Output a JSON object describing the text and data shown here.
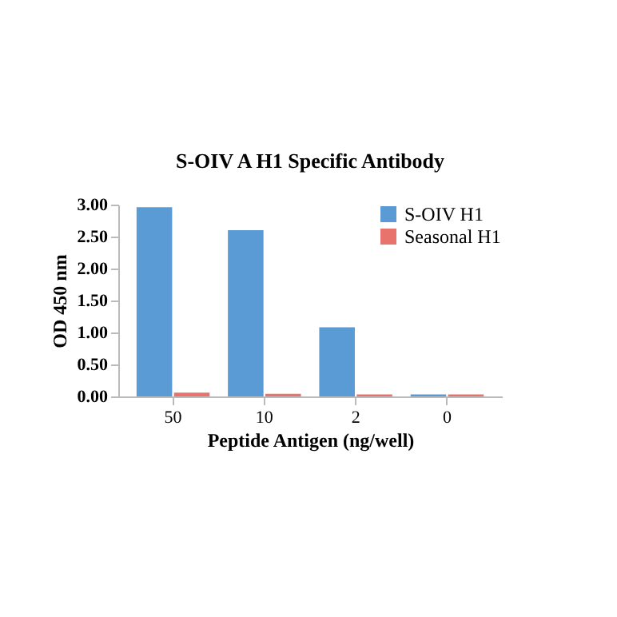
{
  "chart_data": {
    "type": "bar",
    "title": "S-OIV A H1 Specific Antibody",
    "xlabel": "Peptide Antigen (ng/well)",
    "ylabel": "OD 450 nm",
    "categories": [
      "50",
      "10",
      "2",
      "0"
    ],
    "series": [
      {
        "name": "S-OIV H1",
        "color": "#5b9bd5",
        "values": [
          2.96,
          2.6,
          1.08,
          0.03
        ]
      },
      {
        "name": "Seasonal H1",
        "color": "#e8736c",
        "values": [
          0.06,
          0.04,
          0.03,
          0.03
        ]
      }
    ],
    "ylim": [
      0,
      3
    ],
    "yticks": [
      {
        "value": 0,
        "label": "0.00"
      },
      {
        "value": 0.5,
        "label": "0.50"
      },
      {
        "value": 1,
        "label": "1.00"
      },
      {
        "value": 1.5,
        "label": "1.50"
      },
      {
        "value": 2,
        "label": "2.00"
      },
      {
        "value": 2.5,
        "label": "2.50"
      },
      {
        "value": 3,
        "label": "3.00"
      }
    ],
    "grid": false,
    "legend": "top right"
  }
}
